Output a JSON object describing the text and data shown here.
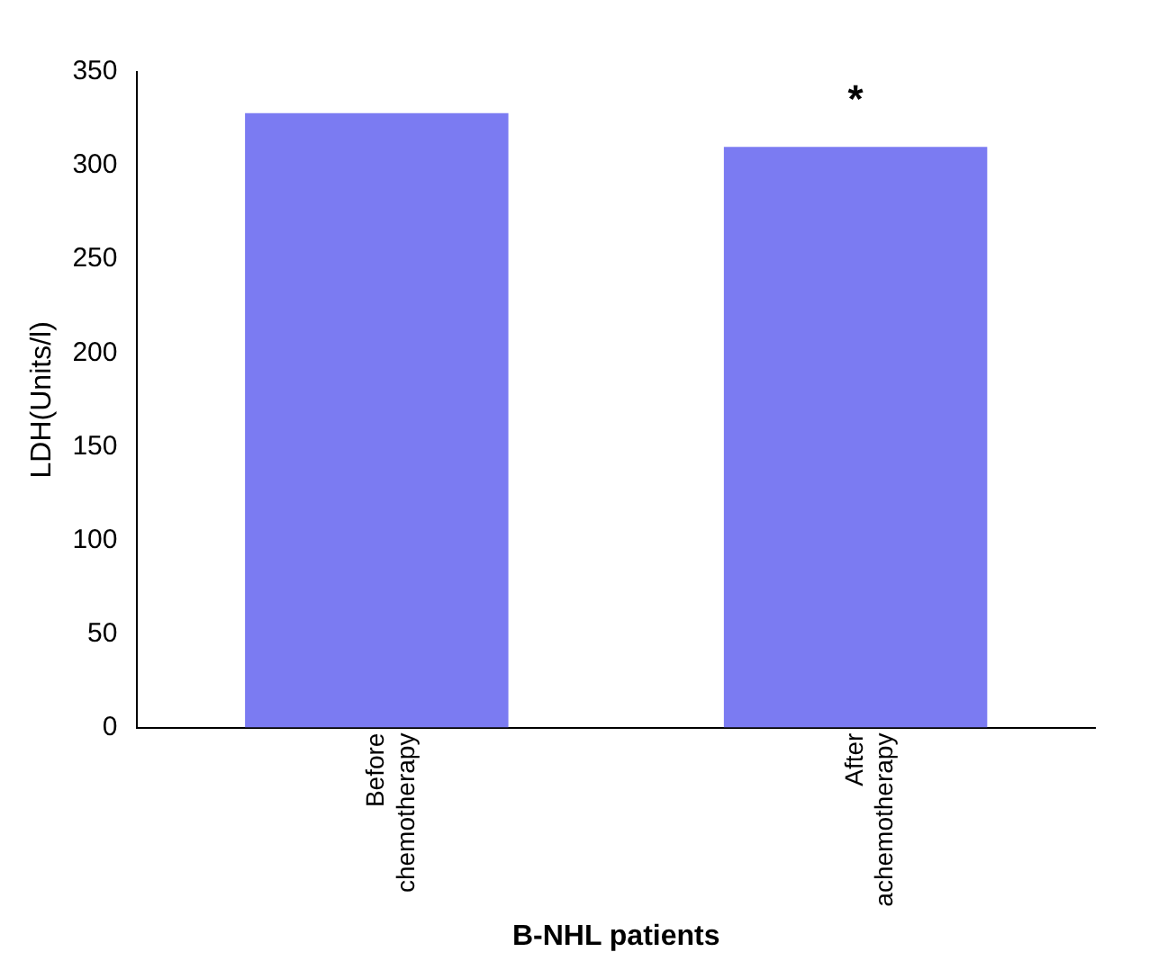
{
  "chart_data": {
    "type": "bar",
    "ylabel": "LDH(Units/l)",
    "xlabel": "B-NHL patients",
    "categories": [
      "Before chemotherapy",
      "After achemotherapy"
    ],
    "values": [
      328,
      310
    ],
    "color": "#7b7bf2",
    "ylim": [
      0,
      350
    ],
    "yticks": [
      0,
      50,
      100,
      150,
      200,
      250,
      300,
      350
    ],
    "grid": false,
    "legend": false,
    "annotations": [
      {
        "text": "*",
        "x": "After achemotherapy",
        "y": 310
      }
    ]
  }
}
